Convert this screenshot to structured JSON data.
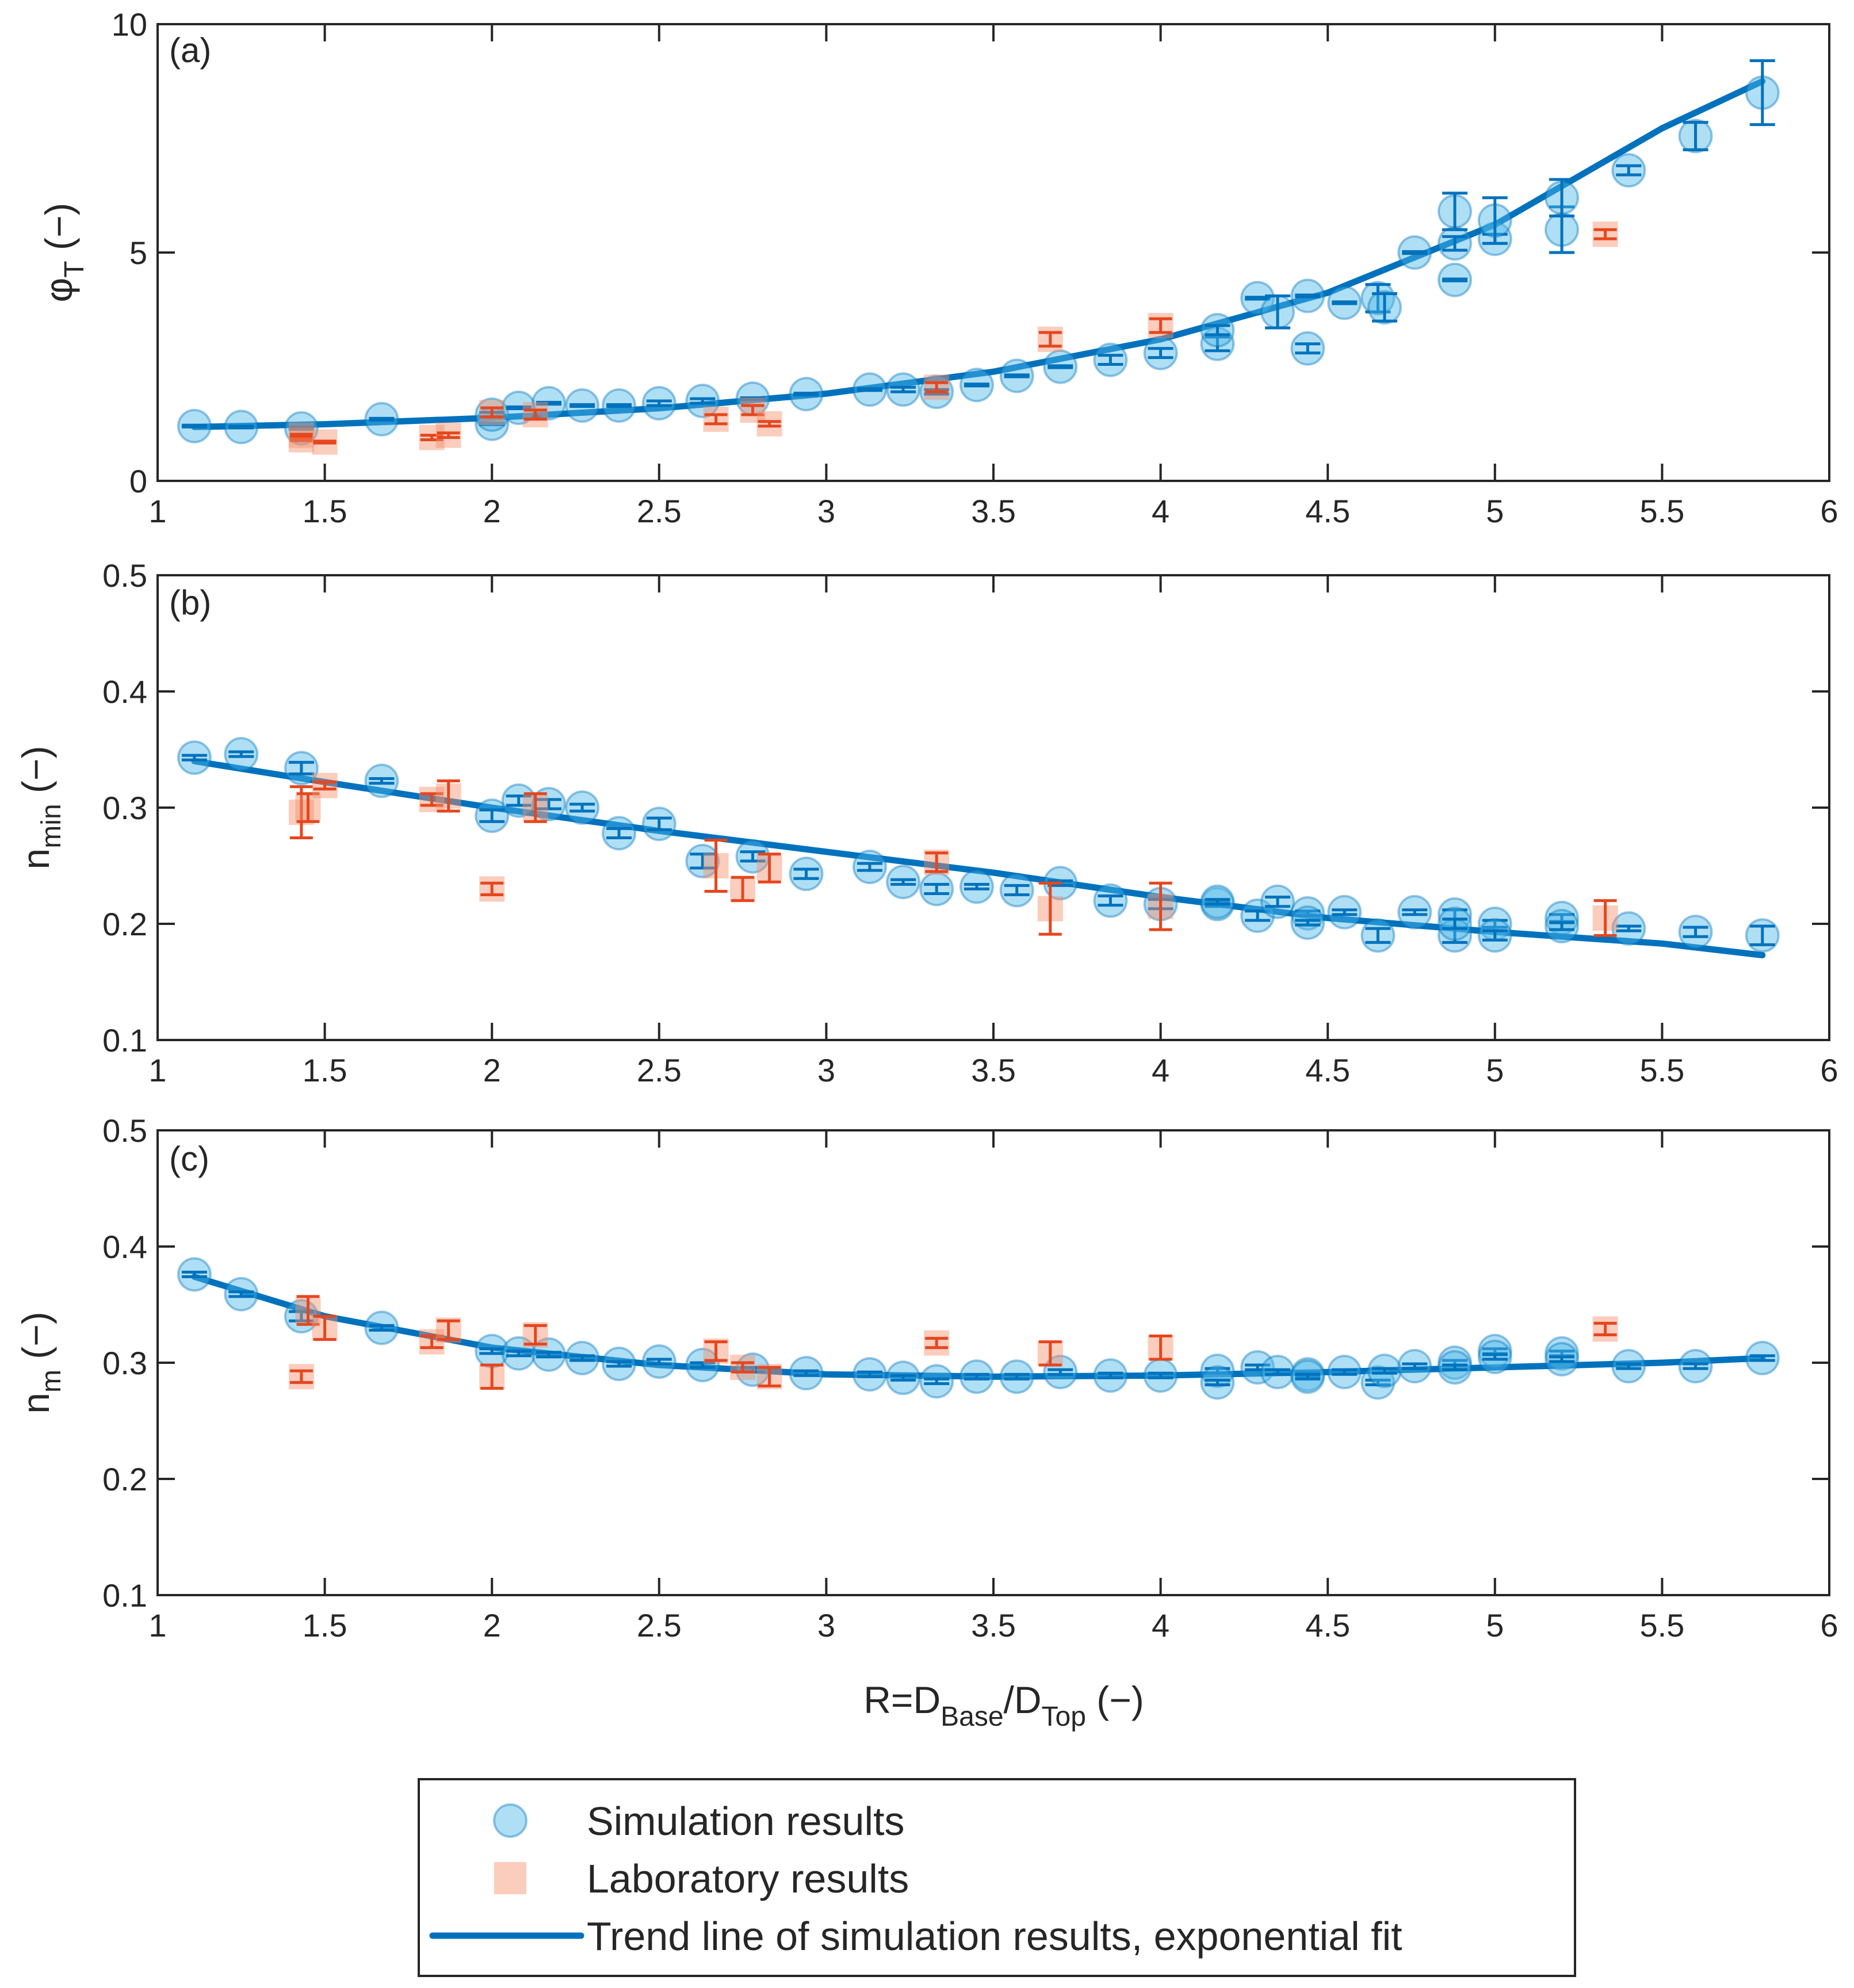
{
  "chart_data": {
    "type": "scatter",
    "legend": {
      "position": "bottom-center",
      "entries": [
        {
          "name": "Simulation results",
          "marker": "circle",
          "color": "#4db8e8"
        },
        {
          "name": "Laboratory results",
          "marker": "square",
          "color": "#f4916c"
        },
        {
          "name": "Trend line of simulation results, exponential fit",
          "marker": "line",
          "color": "#0072bd"
        }
      ]
    },
    "x_title": {
      "main": "R=D",
      "sub1": "Base",
      "mid": "/D",
      "sub2": "Top",
      "end": " (−)"
    },
    "x_range": [
      1,
      6
    ],
    "x_ticks": [
      1,
      1.5,
      2,
      2.5,
      3,
      3.5,
      4,
      4.5,
      5,
      5.5,
      6
    ],
    "x_tick_labels": [
      "1",
      "1.5",
      "2",
      "2.5",
      "3",
      "3.5",
      "4",
      "4.5",
      "5",
      "5.5",
      "6"
    ],
    "panels": [
      {
        "id": "a",
        "label": "(a)",
        "ylabel": {
          "main": "φ",
          "sub": "T",
          "end": " (−)"
        },
        "ylim": [
          0,
          10
        ],
        "y_ticks": [
          0,
          5,
          10
        ],
        "y_tick_labels": [
          "0",
          "5",
          "10"
        ],
        "simulation": [
          [
            1.11,
            1.2,
            0
          ],
          [
            1.25,
            1.18,
            0
          ],
          [
            1.43,
            1.15,
            0
          ],
          [
            1.67,
            1.35,
            0
          ],
          [
            2.0,
            1.25,
            0
          ],
          [
            2.0,
            1.45,
            0.05
          ],
          [
            2.08,
            1.6,
            0
          ],
          [
            2.17,
            1.7,
            0
          ],
          [
            2.27,
            1.65,
            0
          ],
          [
            2.38,
            1.65,
            0
          ],
          [
            2.5,
            1.7,
            0.05
          ],
          [
            2.63,
            1.75,
            0.05
          ],
          [
            2.78,
            1.8,
            0
          ],
          [
            2.94,
            1.9,
            0
          ],
          [
            3.13,
            2.0,
            0
          ],
          [
            3.23,
            2.0,
            0.05
          ],
          [
            3.33,
            1.95,
            0.05
          ],
          [
            3.45,
            2.1,
            0
          ],
          [
            3.57,
            2.3,
            0
          ],
          [
            3.7,
            2.5,
            0
          ],
          [
            3.85,
            2.65,
            0.1
          ],
          [
            4.0,
            2.8,
            0.1
          ],
          [
            4.17,
            3.0,
            0.15
          ],
          [
            4.17,
            3.3,
            0.1
          ],
          [
            4.29,
            4.0,
            0
          ],
          [
            4.35,
            3.7,
            0.35
          ],
          [
            4.44,
            2.9,
            0.1
          ],
          [
            4.44,
            4.05,
            0
          ],
          [
            4.55,
            3.9,
            0
          ],
          [
            4.65,
            4.0,
            0.3
          ],
          [
            4.67,
            3.8,
            0.3
          ],
          [
            4.76,
            5.0,
            0
          ],
          [
            4.88,
            4.4,
            0
          ],
          [
            4.88,
            5.2,
            0.15
          ],
          [
            4.88,
            5.9,
            0.4
          ],
          [
            5.0,
            5.3,
            0.1
          ],
          [
            5.0,
            5.7,
            0.5
          ],
          [
            5.2,
            5.5,
            0.5
          ],
          [
            5.2,
            6.2,
            0.4
          ],
          [
            5.4,
            6.8,
            0.1
          ],
          [
            5.6,
            7.55,
            0.3
          ],
          [
            5.8,
            8.5,
            0.7
          ]
        ],
        "laboratory": [
          [
            1.43,
            0.9,
            0
          ],
          [
            1.43,
            1.0,
            0
          ],
          [
            1.5,
            0.85,
            0
          ],
          [
            1.82,
            0.95,
            0.05
          ],
          [
            1.87,
            1.0,
            0.05
          ],
          [
            2.0,
            1.5,
            0.1
          ],
          [
            2.13,
            1.45,
            0.1
          ],
          [
            2.67,
            1.35,
            0.1
          ],
          [
            2.78,
            1.55,
            0.1
          ],
          [
            2.83,
            1.25,
            0.05
          ],
          [
            3.33,
            2.05,
            0.1
          ],
          [
            3.67,
            3.1,
            0.15
          ],
          [
            4.0,
            3.4,
            0.15
          ],
          [
            5.33,
            5.4,
            0.1
          ]
        ],
        "trend": [
          [
            1.11,
            1.18
          ],
          [
            1.5,
            1.24
          ],
          [
            2.0,
            1.38
          ],
          [
            2.5,
            1.59
          ],
          [
            3.0,
            1.91
          ],
          [
            3.5,
            2.39
          ],
          [
            4.0,
            3.1
          ],
          [
            4.5,
            4.12
          ],
          [
            5.0,
            5.61
          ],
          [
            5.5,
            7.72
          ],
          [
            5.8,
            8.75
          ]
        ]
      },
      {
        "id": "b",
        "label": "(b)",
        "ylabel": {
          "main": "n",
          "sub": "min",
          "end": " (−)"
        },
        "ylim": [
          0.1,
          0.5
        ],
        "y_ticks": [
          0.1,
          0.2,
          0.3,
          0.4,
          0.5
        ],
        "y_tick_labels": [
          "0.1",
          "0.2",
          "0.3",
          "0.4",
          "0.5"
        ],
        "simulation": [
          [
            1.11,
            0.343,
            0.002
          ],
          [
            1.25,
            0.346,
            0.002
          ],
          [
            1.43,
            0.334,
            0.005
          ],
          [
            1.67,
            0.323,
            0.002
          ],
          [
            2.0,
            0.293,
            0.005
          ],
          [
            2.08,
            0.306,
            0.004
          ],
          [
            2.17,
            0.303,
            0.004
          ],
          [
            2.27,
            0.3,
            0.003
          ],
          [
            2.38,
            0.278,
            0.004
          ],
          [
            2.5,
            0.286,
            0.005
          ],
          [
            2.63,
            0.254,
            0.006
          ],
          [
            2.78,
            0.258,
            0.004
          ],
          [
            2.94,
            0.243,
            0.004
          ],
          [
            3.13,
            0.249,
            0.003
          ],
          [
            3.23,
            0.236,
            0.002
          ],
          [
            3.33,
            0.23,
            0.004
          ],
          [
            3.45,
            0.232,
            0.002
          ],
          [
            3.57,
            0.229,
            0.004
          ],
          [
            3.7,
            0.235,
            0.002
          ],
          [
            3.85,
            0.22,
            0.004
          ],
          [
            4.0,
            0.217,
            0.004
          ],
          [
            4.17,
            0.217,
            0.002
          ],
          [
            4.17,
            0.219,
            0.002
          ],
          [
            4.29,
            0.207,
            0.004
          ],
          [
            4.35,
            0.219,
            0.004
          ],
          [
            4.44,
            0.209,
            0.002
          ],
          [
            4.44,
            0.201,
            0.002
          ],
          [
            4.55,
            0.21,
            0.002
          ],
          [
            4.65,
            0.19,
            0.006
          ],
          [
            4.76,
            0.21,
            0.002
          ],
          [
            4.88,
            0.208,
            0.004
          ],
          [
            4.88,
            0.19,
            0.006
          ],
          [
            4.88,
            0.2,
            0.004
          ],
          [
            5.0,
            0.2,
            0.003
          ],
          [
            5.0,
            0.19,
            0.004
          ],
          [
            5.2,
            0.205,
            0.003
          ],
          [
            5.2,
            0.198,
            0.003
          ],
          [
            5.4,
            0.196,
            0.002
          ],
          [
            5.6,
            0.193,
            0.004
          ],
          [
            5.8,
            0.19,
            0.008
          ]
        ],
        "laboratory": [
          [
            1.43,
            0.296,
            0.022
          ],
          [
            1.45,
            0.3,
            0.012
          ],
          [
            1.5,
            0.319,
            0.003
          ],
          [
            1.82,
            0.307,
            0.005
          ],
          [
            1.87,
            0.31,
            0.013
          ],
          [
            2.0,
            0.23,
            0.005
          ],
          [
            2.13,
            0.3,
            0.012
          ],
          [
            2.67,
            0.25,
            0.022
          ],
          [
            2.75,
            0.23,
            0.01
          ],
          [
            2.83,
            0.248,
            0.012
          ],
          [
            3.33,
            0.253,
            0.008
          ],
          [
            3.67,
            0.213,
            0.022
          ],
          [
            4.0,
            0.215,
            0.02
          ],
          [
            5.33,
            0.205,
            0.015
          ]
        ],
        "trend": [
          [
            1.11,
            0.34
          ],
          [
            1.5,
            0.322
          ],
          [
            2.0,
            0.3
          ],
          [
            2.5,
            0.28
          ],
          [
            3.0,
            0.262
          ],
          [
            3.5,
            0.244
          ],
          [
            4.0,
            0.223
          ],
          [
            4.5,
            0.205
          ],
          [
            5.0,
            0.193
          ],
          [
            5.5,
            0.183
          ],
          [
            5.8,
            0.173
          ]
        ]
      },
      {
        "id": "c",
        "label": "(c)",
        "ylabel": {
          "main": "n",
          "sub": "m",
          "end": " (−)"
        },
        "ylim": [
          0.1,
          0.5
        ],
        "y_ticks": [
          0.1,
          0.2,
          0.3,
          0.4,
          0.5
        ],
        "y_tick_labels": [
          "0.1",
          "0.2",
          "0.3",
          "0.4",
          "0.5"
        ],
        "simulation": [
          [
            1.11,
            0.376,
            0.002
          ],
          [
            1.25,
            0.359,
            0.002
          ],
          [
            1.43,
            0.34,
            0.004
          ],
          [
            1.67,
            0.33,
            0.002
          ],
          [
            2.0,
            0.31,
            0.002
          ],
          [
            2.08,
            0.308,
            0.002
          ],
          [
            2.17,
            0.307,
            0.002
          ],
          [
            2.27,
            0.304,
            0.002
          ],
          [
            2.38,
            0.299,
            0.002
          ],
          [
            2.5,
            0.301,
            0.002
          ],
          [
            2.63,
            0.298,
            0.002
          ],
          [
            2.78,
            0.294,
            0.002
          ],
          [
            2.94,
            0.291,
            0.002
          ],
          [
            3.13,
            0.29,
            0.002
          ],
          [
            3.23,
            0.287,
            0.002
          ],
          [
            3.33,
            0.284,
            0.002
          ],
          [
            3.45,
            0.288,
            0.002
          ],
          [
            3.57,
            0.288,
            0.002
          ],
          [
            3.7,
            0.292,
            0.002
          ],
          [
            3.85,
            0.289,
            0.002
          ],
          [
            4.0,
            0.289,
            0.002
          ],
          [
            4.17,
            0.293,
            0.002
          ],
          [
            4.17,
            0.283,
            0.002
          ],
          [
            4.29,
            0.296,
            0.002
          ],
          [
            4.35,
            0.292,
            0.002
          ],
          [
            4.44,
            0.29,
            0.002
          ],
          [
            4.44,
            0.288,
            0.002
          ],
          [
            4.55,
            0.292,
            0.002
          ],
          [
            4.65,
            0.283,
            0.002
          ],
          [
            4.67,
            0.293,
            0.002
          ],
          [
            4.76,
            0.297,
            0.002
          ],
          [
            4.88,
            0.3,
            0.002
          ],
          [
            4.88,
            0.296,
            0.002
          ],
          [
            5.0,
            0.31,
            0.002
          ],
          [
            5.0,
            0.305,
            0.002
          ],
          [
            5.2,
            0.308,
            0.002
          ],
          [
            5.2,
            0.303,
            0.002
          ],
          [
            5.4,
            0.297,
            0.002
          ],
          [
            5.6,
            0.297,
            0.002
          ],
          [
            5.8,
            0.304,
            0.002
          ]
        ],
        "laboratory": [
          [
            1.43,
            0.288,
            0.005
          ],
          [
            1.45,
            0.345,
            0.012
          ],
          [
            1.5,
            0.33,
            0.01
          ],
          [
            1.82,
            0.318,
            0.005
          ],
          [
            1.87,
            0.328,
            0.008
          ],
          [
            2.0,
            0.288,
            0.01
          ],
          [
            2.13,
            0.324,
            0.008
          ],
          [
            2.67,
            0.31,
            0.008
          ],
          [
            2.75,
            0.296,
            0.004
          ],
          [
            2.83,
            0.288,
            0.008
          ],
          [
            3.33,
            0.317,
            0.004
          ],
          [
            3.67,
            0.308,
            0.01
          ],
          [
            4.0,
            0.313,
            0.01
          ],
          [
            5.33,
            0.329,
            0.005
          ]
        ],
        "trend": [
          [
            1.11,
            0.374
          ],
          [
            1.5,
            0.34
          ],
          [
            2.0,
            0.313
          ],
          [
            2.5,
            0.298
          ],
          [
            3.0,
            0.29
          ],
          [
            3.5,
            0.288
          ],
          [
            4.0,
            0.289
          ],
          [
            4.5,
            0.292
          ],
          [
            5.0,
            0.296
          ],
          [
            5.5,
            0.3
          ],
          [
            5.8,
            0.304
          ]
        ]
      }
    ]
  }
}
